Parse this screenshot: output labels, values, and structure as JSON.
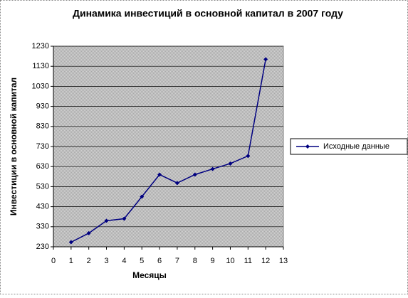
{
  "chart_data": {
    "type": "line",
    "title": "Динамика инвестиций в основной капитал в 2007 году",
    "x_label": "Месяцы",
    "y_label": "Инвестиции в основной капитал",
    "x": [
      1,
      2,
      3,
      4,
      5,
      6,
      7,
      8,
      9,
      10,
      11,
      12
    ],
    "series": [
      {
        "name": "Исходные данные",
        "color": "#000080",
        "values": [
          253,
          298,
          360,
          370,
          480,
          590,
          548,
          590,
          618,
          645,
          683,
          1165
        ]
      }
    ],
    "xlim": [
      0,
      13
    ],
    "xticks": [
      0,
      1,
      2,
      3,
      4,
      5,
      6,
      7,
      8,
      9,
      10,
      11,
      12,
      13
    ],
    "ylim": [
      230,
      1230
    ],
    "yticks": [
      230,
      330,
      430,
      530,
      630,
      730,
      830,
      930,
      1030,
      1130,
      1230
    ],
    "grid": true,
    "legend": "right"
  }
}
